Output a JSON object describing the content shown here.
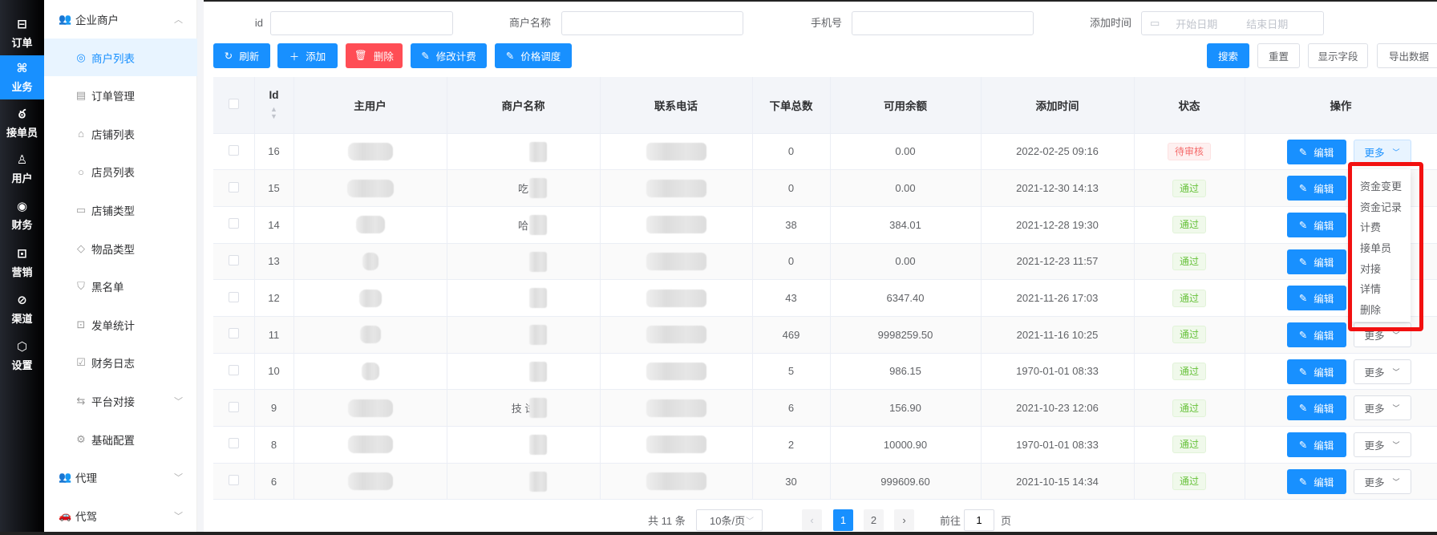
{
  "nav_primary": [
    {
      "label": "订单",
      "icon": "document-icon"
    },
    {
      "label": "业务",
      "icon": "grid-icon",
      "active": true
    },
    {
      "label": "接单员",
      "icon": "bike-icon"
    },
    {
      "label": "用户",
      "icon": "user-icon"
    },
    {
      "label": "财务",
      "icon": "money-icon"
    },
    {
      "label": "营销",
      "icon": "chart-icon"
    },
    {
      "label": "渠道",
      "icon": "compass-icon"
    },
    {
      "label": "设置",
      "icon": "hex-gear-icon"
    }
  ],
  "nav_secondary": {
    "group": "企业商户",
    "items": [
      {
        "label": "商户列表",
        "active": true
      },
      {
        "label": "订单管理"
      },
      {
        "label": "店铺列表"
      },
      {
        "label": "店员列表"
      },
      {
        "label": "店铺类型"
      },
      {
        "label": "物品类型"
      },
      {
        "label": "黑名单"
      },
      {
        "label": "发单统计"
      },
      {
        "label": "财务日志"
      },
      {
        "label": "平台对接"
      },
      {
        "label": "基础配置"
      }
    ],
    "groups_after": [
      {
        "label": "代理"
      },
      {
        "label": "代驾"
      }
    ]
  },
  "search": {
    "id_label": "id",
    "name_label": "商户名称",
    "phone_label": "手机号",
    "time_label": "添加时间",
    "start_placeholder": "开始日期",
    "end_placeholder": "结束日期"
  },
  "toolbar": {
    "refresh": "刷新",
    "add": "添加",
    "delete": "删除",
    "edit_fee": "修改计费",
    "price_adjust": "价格调度",
    "search": "搜索",
    "reset": "重置",
    "show_fields": "显示字段",
    "export": "导出数据"
  },
  "table": {
    "headers": [
      "Id",
      "主用户",
      "商户名称",
      "联系电话",
      "下单总数",
      "可用余额",
      "添加时间",
      "状态",
      "操作"
    ],
    "edit_label": "编辑",
    "more_label": "更多",
    "rows": [
      {
        "id": "16",
        "name": "",
        "orders": "0",
        "balance": "0.00",
        "time": "2022-02-25 09:16",
        "status": "待审核",
        "st": "pend"
      },
      {
        "id": "15",
        "name": "吃",
        "orders": "0",
        "balance": "0.00",
        "time": "2021-12-30 14:13",
        "status": "通过",
        "st": "ok"
      },
      {
        "id": "14",
        "name": "哈",
        "orders": "38",
        "balance": "384.01",
        "time": "2021-12-28 19:30",
        "status": "通过",
        "st": "ok"
      },
      {
        "id": "13",
        "name": "",
        "orders": "0",
        "balance": "0.00",
        "time": "2021-12-23 11:57",
        "status": "通过",
        "st": "ok"
      },
      {
        "id": "12",
        "name": "",
        "orders": "43",
        "balance": "6347.40",
        "time": "2021-11-26 17:03",
        "status": "通过",
        "st": "ok"
      },
      {
        "id": "11",
        "name": "",
        "orders": "469",
        "balance": "9998259.50",
        "time": "2021-11-16 10:25",
        "status": "通过",
        "st": "ok"
      },
      {
        "id": "10",
        "name": "",
        "orders": "5",
        "balance": "986.15",
        "time": "1970-01-01 08:33",
        "status": "通过",
        "st": "ok"
      },
      {
        "id": "9",
        "name": "技    试",
        "orders": "6",
        "balance": "156.90",
        "time": "2021-10-23 12:06",
        "status": "通过",
        "st": "ok"
      },
      {
        "id": "8",
        "name": "",
        "orders": "2",
        "balance": "10000.90",
        "time": "1970-01-01 08:33",
        "status": "通过",
        "st": "ok"
      },
      {
        "id": "6",
        "name": "",
        "orders": "30",
        "balance": "999609.60",
        "time": "2021-10-15 14:34",
        "status": "通过",
        "st": "ok"
      }
    ]
  },
  "dropdown": {
    "items": [
      "资金变更",
      "资金记录",
      "计费",
      "接单员",
      "对接",
      "详情",
      "删除"
    ]
  },
  "pagination": {
    "total": "共 11 条",
    "page_size": "10条/页",
    "pages": [
      "1",
      "2"
    ],
    "current": "1",
    "goto_label": "前往",
    "goto_value": "1",
    "page_suffix": "页"
  },
  "colors": {
    "primary": "#1890ff",
    "danger": "#ff4d55",
    "highlight": "#f21010"
  }
}
